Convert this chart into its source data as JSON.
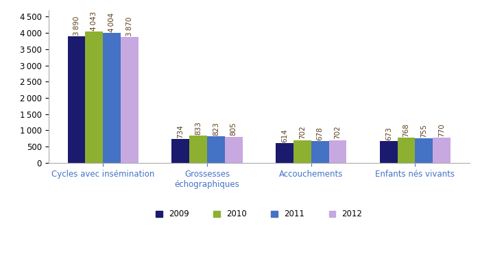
{
  "categories": [
    "Cycles avec insémination",
    "Grossesses\néchographiques",
    "Accouchements",
    "Enfants nés vivants"
  ],
  "years": [
    "2009",
    "2010",
    "2011",
    "2012"
  ],
  "values": {
    "2009": [
      3890,
      734,
      614,
      673
    ],
    "2010": [
      4043,
      833,
      702,
      768
    ],
    "2011": [
      4004,
      823,
      678,
      755
    ],
    "2012": [
      3870,
      805,
      702,
      770
    ]
  },
  "colors": {
    "2009": "#1a1a6e",
    "2010": "#8db030",
    "2011": "#4472c4",
    "2012": "#c8a8e0"
  },
  "ylim": [
    0,
    4700
  ],
  "yticks": [
    0,
    500,
    1000,
    1500,
    2000,
    2500,
    3000,
    3500,
    4000,
    4500
  ],
  "bar_width": 0.17,
  "value_label_fontsize": 7.5,
  "axis_label_fontsize": 8.5,
  "legend_fontsize": 8.5,
  "tick_fontsize": 8.5,
  "background_color": "#ffffff",
  "value_color": "#5a3e1b"
}
